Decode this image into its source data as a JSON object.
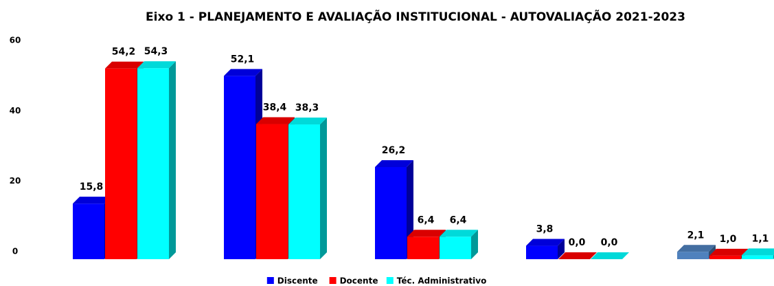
{
  "chart_data": {
    "type": "bar3d",
    "title": "Eixo 1 - PLANEJAMENTO E AVALIAÇÃO INSTITUCIONAL - AUTOVALIAÇÃO 2021-2023",
    "categories": [
      null,
      null,
      null,
      null,
      null
    ],
    "series": [
      {
        "name": "Discente",
        "color": "#0000ff",
        "colors": [
          "#0000ff",
          "#0000ff",
          "#0000ff",
          "#0000ff",
          "#4f81bd"
        ],
        "values": [
          15.8,
          52.1,
          26.2,
          3.8,
          2.1
        ],
        "value_labels": [
          "15,8",
          "52,1",
          "26,2",
          "3,8",
          "2,1"
        ]
      },
      {
        "name": "Docente",
        "color": "#ff0000",
        "values": [
          54.2,
          38.4,
          6.4,
          0.0,
          1.0
        ],
        "value_labels": [
          "54,2",
          "38,4",
          "6,4",
          "0,0",
          "1,0"
        ]
      },
      {
        "name": "Téc. Administrativo",
        "color": "#00ffff",
        "values": [
          54.3,
          38.3,
          6.4,
          0.0,
          1.1
        ],
        "value_labels": [
          "54,3",
          "38,3",
          "6,4",
          "0,0",
          "1,1"
        ]
      }
    ],
    "ylim": [
      0,
      60
    ],
    "yticks": [
      0,
      20,
      40,
      60
    ],
    "grid": false,
    "legend": "bottom"
  }
}
